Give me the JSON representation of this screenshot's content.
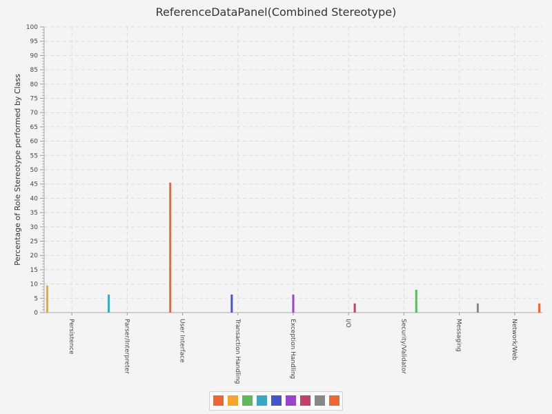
{
  "chart_data": {
    "type": "bar",
    "title": "ReferenceDataPanel(Combined Stereotype)",
    "xlabel": "",
    "ylabel": "Percentage of Role Stereotype performed by Class",
    "ylim": [
      0,
      100
    ],
    "y_major_ticks": [
      0,
      5,
      10,
      15,
      20,
      25,
      30,
      35,
      40,
      45,
      50,
      55,
      60,
      65,
      70,
      75,
      80,
      85,
      90,
      95,
      100
    ],
    "grid": true,
    "legend_position": "bottom",
    "categories": [
      "Persistence",
      "Parser/Interpreter",
      "User Interface",
      "Transaction Handling",
      "Exception Handling",
      "I/O",
      "Security/Validator",
      "Messaging",
      "Network/Web"
    ],
    "series": [
      {
        "values": [
          9.5,
          0,
          0,
          0,
          0,
          0,
          0,
          0,
          0
        ],
        "color": "#f6a52a"
      },
      {
        "values": [
          0,
          6.3,
          0,
          0,
          0,
          0,
          0,
          0,
          0
        ],
        "color": "#3aa7c4"
      },
      {
        "values": [
          0,
          0,
          45.5,
          0,
          0,
          0,
          0,
          0,
          0
        ],
        "color": "#f06632"
      },
      {
        "values": [
          0,
          0,
          0,
          6.3,
          0,
          0,
          0,
          0,
          0
        ],
        "color": "#4455c8"
      },
      {
        "values": [
          0,
          0,
          0,
          0,
          6.3,
          0,
          0,
          0,
          0
        ],
        "color": "#9a44cc"
      },
      {
        "values": [
          0,
          0,
          0,
          0,
          0,
          3.2,
          0,
          0,
          0
        ],
        "color": "#c44068"
      },
      {
        "values": [
          0,
          0,
          0,
          0,
          0,
          0,
          8.0,
          0,
          0
        ],
        "color": "#5cba5c"
      },
      {
        "values": [
          0,
          0,
          0,
          0,
          0,
          0,
          0,
          3.2,
          0
        ],
        "color": "#888888"
      },
      {
        "values": [
          0,
          0,
          0,
          0,
          0,
          0,
          0,
          0,
          3.2
        ],
        "color": "#f06632"
      }
    ],
    "legend_swatches": [
      "#f06632",
      "#f6a52a",
      "#5cba5c",
      "#3aa7c4",
      "#4455c8",
      "#9a44cc",
      "#c44068",
      "#888888",
      "#f06632"
    ]
  }
}
